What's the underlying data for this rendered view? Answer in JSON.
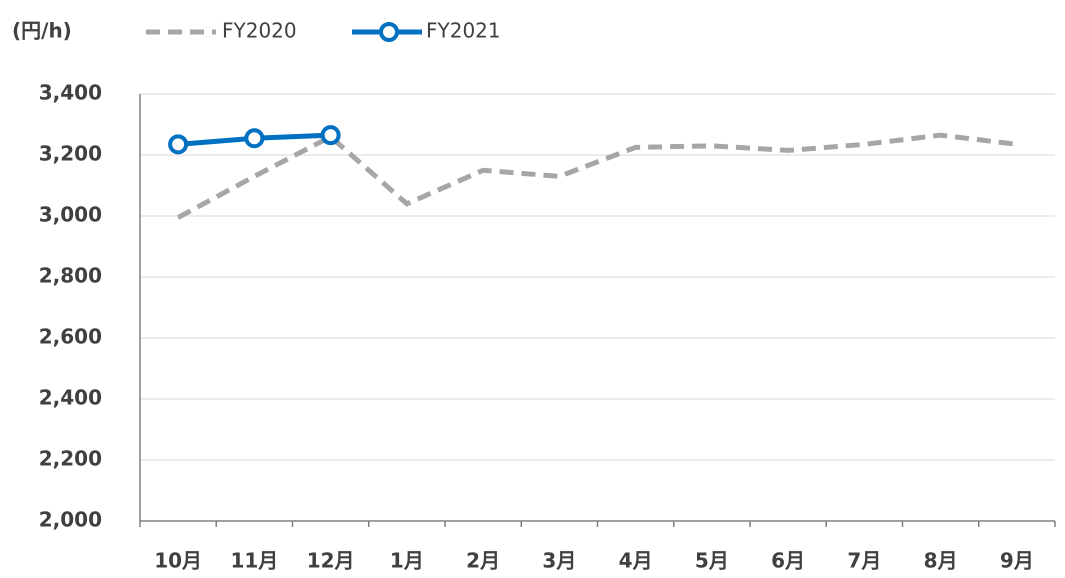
{
  "chart_data": {
    "type": "line",
    "ylabel": "(円/h)",
    "categories": [
      "10月",
      "11月",
      "12月",
      "1月",
      "2月",
      "3月",
      "4月",
      "5月",
      "6月",
      "7月",
      "8月",
      "9月"
    ],
    "series": [
      {
        "name": "FY2020",
        "color": "#a6a6a6",
        "values": [
          2995,
          3130,
          3260,
          3040,
          3150,
          3130,
          3225,
          3230,
          3215,
          3235,
          3265,
          3235
        ]
      },
      {
        "name": "FY2021",
        "color": "#0070c0",
        "values": [
          3235,
          3255,
          3265,
          null,
          null,
          null,
          null,
          null,
          null,
          null,
          null,
          null
        ]
      }
    ],
    "ylim": [
      2000,
      3400
    ],
    "yticks": [
      {
        "value": 2000,
        "label": "2,000"
      },
      {
        "value": 2200,
        "label": "2,200"
      },
      {
        "value": 2400,
        "label": "2,400"
      },
      {
        "value": 2600,
        "label": "2,600"
      },
      {
        "value": 2800,
        "label": "2,800"
      },
      {
        "value": 3000,
        "label": "3,000"
      },
      {
        "value": 3200,
        "label": "3,200"
      },
      {
        "value": 3400,
        "label": "3,400"
      }
    ],
    "grid": true
  }
}
